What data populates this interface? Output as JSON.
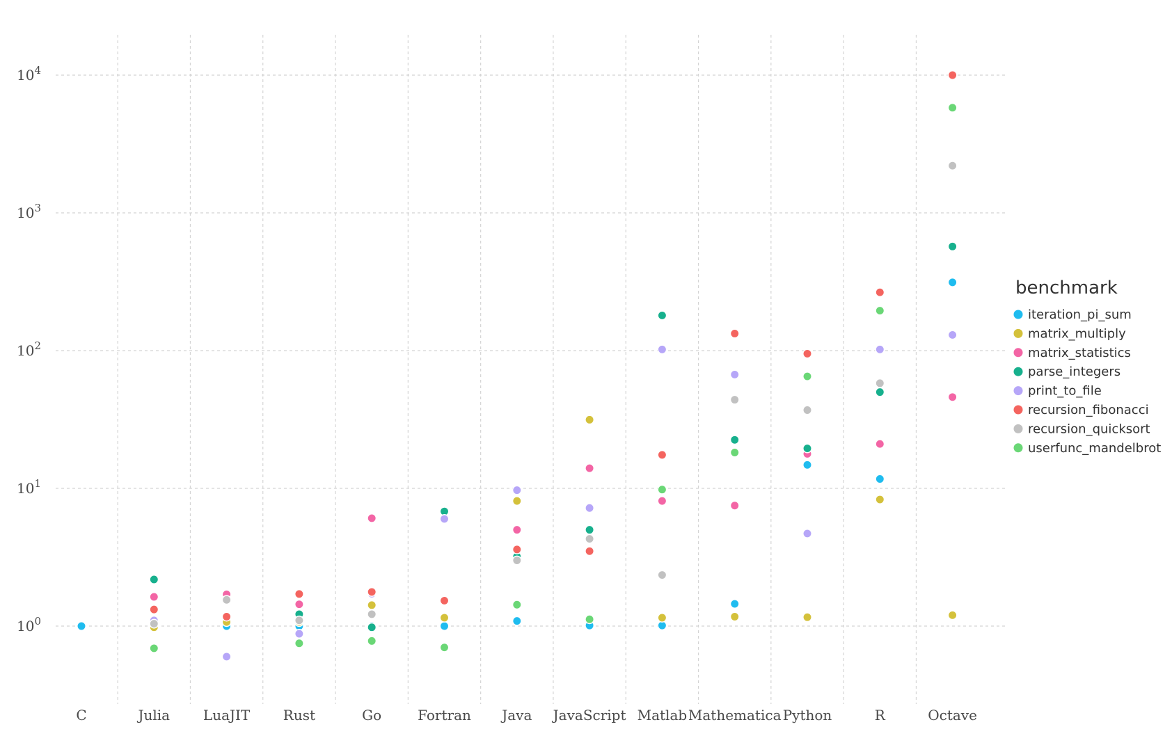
{
  "chart_data": {
    "type": "scatter",
    "title": "",
    "xlabel": "",
    "ylabel": "",
    "yscale": "log10",
    "ylim": [
      0.2,
      20000
    ],
    "yticks": [
      {
        "value": 1,
        "base": "10",
        "exp": "0"
      },
      {
        "value": 10,
        "base": "10",
        "exp": "1"
      },
      {
        "value": 100,
        "base": "10",
        "exp": "2"
      },
      {
        "value": 1000,
        "base": "10",
        "exp": "3"
      },
      {
        "value": 10000,
        "base": "10",
        "exp": "4"
      }
    ],
    "grid": true,
    "legend": {
      "title": "benchmark",
      "position": "right"
    },
    "categories": [
      "C",
      "Julia",
      "LuaJIT",
      "Rust",
      "Go",
      "Fortran",
      "Java",
      "JavaScript",
      "Matlab",
      "Mathematica",
      "Python",
      "R",
      "Octave"
    ],
    "series": [
      {
        "name": "iteration_pi_sum",
        "color": "#1fbcef",
        "values": [
          1.0,
          1.01,
          1.0,
          1.0,
          1.0,
          1.0,
          1.09,
          1.01,
          1.01,
          1.45,
          14.8,
          11.7,
          313
        ]
      },
      {
        "name": "matrix_multiply",
        "color": "#d4c13b",
        "values": [
          null,
          0.98,
          1.07,
          1.07,
          1.42,
          1.15,
          8.1,
          31.5,
          1.15,
          1.17,
          1.16,
          8.3,
          1.2
        ]
      },
      {
        "name": "matrix_statistics",
        "color": "#f365a5",
        "values": [
          null,
          1.63,
          1.7,
          1.44,
          6.07,
          1.53,
          5.0,
          14.0,
          8.1,
          7.5,
          17.8,
          21.0,
          46.0
        ]
      },
      {
        "name": "parse_integers",
        "color": "#17b08d",
        "values": [
          null,
          2.18,
          null,
          1.22,
          0.98,
          6.8,
          3.2,
          5.0,
          180,
          22.5,
          19.5,
          50,
          570
        ]
      },
      {
        "name": "print_to_file",
        "color": "#b6a6f8",
        "values": [
          null,
          1.1,
          0.6,
          0.88,
          1.72,
          6.0,
          9.7,
          7.2,
          102,
          67,
          4.7,
          102,
          130
        ]
      },
      {
        "name": "recursion_fibonacci",
        "color": "#f4645f",
        "values": [
          null,
          1.32,
          1.17,
          1.71,
          1.77,
          1.53,
          3.6,
          3.5,
          17.5,
          133,
          95,
          265,
          10000
        ]
      },
      {
        "name": "recursion_quicksort",
        "color": "#c1c1c1",
        "values": [
          null,
          1.04,
          1.55,
          1.1,
          1.22,
          null,
          3.0,
          4.3,
          2.35,
          44,
          37,
          58,
          2200
        ]
      },
      {
        "name": "userfunc_mandelbrot",
        "color": "#6ad776",
        "values": [
          null,
          0.69,
          null,
          0.75,
          0.78,
          0.7,
          1.43,
          1.12,
          9.8,
          18.2,
          65,
          195,
          5800
        ]
      }
    ]
  }
}
